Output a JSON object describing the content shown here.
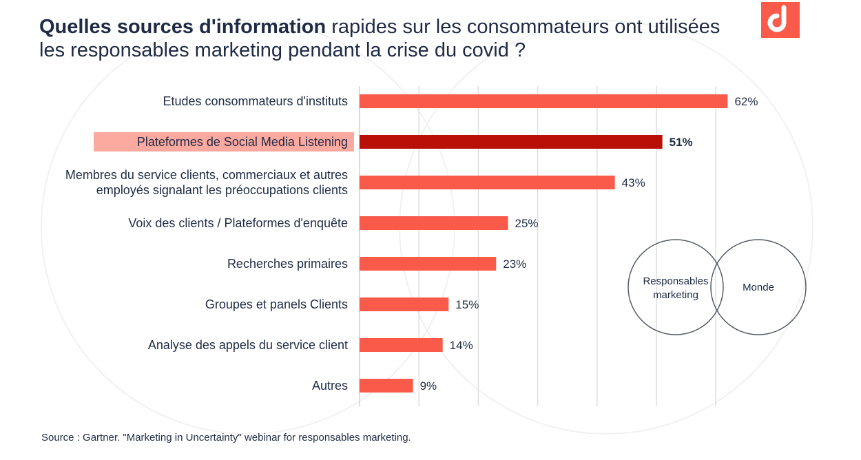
{
  "title": {
    "bold": "Quelles sources  d'information",
    "rest": " rapides sur les consommateurs ont utilisées les responsables marketing pendant la crise du covid ?"
  },
  "brand": {
    "accent": "#fa5a4a",
    "highlight_bar": "#b80f06",
    "highlight_label_bg": "#fca9a0"
  },
  "logo_icon": "brand-logo-icon",
  "chart_data": {
    "type": "bar",
    "orientation": "horizontal",
    "categories": [
      "Etudes consommateurs d'instituts",
      "Plateformes de Social Media Listening",
      "Membres du service clients, commerciaux et autres employés signalant les préoccupations clients",
      "Voix des clients / Plateformes d'enquête",
      "Recherches primaires",
      "Groupes et panels Clients",
      "Analyse des appels du service client",
      "Autres"
    ],
    "category_lines": [
      [
        "Etudes consommateurs d'instituts"
      ],
      [
        "Plateformes de Social Media Listening"
      ],
      [
        "Membres du service clients, commerciaux et autres",
        "employés signalant les préoccupations clients"
      ],
      [
        "Voix des clients / Plateformes d'enquête"
      ],
      [
        "Recherches primaires"
      ],
      [
        "Groupes et panels Clients"
      ],
      [
        "Analyse des appels du service client"
      ],
      [
        "Autres"
      ]
    ],
    "values": [
      62,
      51,
      43,
      25,
      23,
      15,
      14,
      9
    ],
    "value_labels": [
      "62%",
      "51%",
      "43%",
      "25%",
      "23%",
      "15%",
      "14%",
      "9%"
    ],
    "highlighted_index": 1,
    "xlim": [
      0,
      70
    ],
    "vertical_gridlines_every": 10,
    "legend": {
      "type": "venn",
      "placement": "right",
      "circles": [
        "Responsables marketing",
        "Monde"
      ]
    }
  },
  "source": "Source : Gartner. \"Marketing in Uncertainty\" webinar for responsables marketing."
}
